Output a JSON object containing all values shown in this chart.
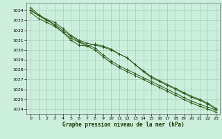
{
  "title": "Graphe pression niveau de la mer (hPa)",
  "bg_color": "#cceedd",
  "grid_color": "#aaccbb",
  "line_color": "#2d5a1b",
  "xlim": [
    -0.5,
    23.5
  ],
  "ylim": [
    1023.5,
    1034.8
  ],
  "yticks": [
    1024,
    1025,
    1026,
    1027,
    1028,
    1029,
    1030,
    1031,
    1032,
    1033,
    1034
  ],
  "xticks": [
    0,
    1,
    2,
    3,
    4,
    5,
    6,
    7,
    8,
    9,
    10,
    11,
    12,
    13,
    14,
    15,
    16,
    17,
    18,
    19,
    20,
    21,
    22,
    23
  ],
  "series": [
    [
      1034.3,
      1033.6,
      1033.1,
      1032.8,
      1032.2,
      1031.5,
      1031.0,
      1030.7,
      1030.5,
      1030.3,
      1030.0,
      1029.6,
      1029.2,
      1028.5,
      1027.9,
      1027.3,
      1026.9,
      1026.5,
      1026.1,
      1025.7,
      1025.3,
      1025.0,
      1024.6,
      1024.1
    ],
    [
      1034.1,
      1033.5,
      1033.0,
      1032.6,
      1032.0,
      1031.4,
      1030.9,
      1030.5,
      1030.2,
      1029.5,
      1028.9,
      1028.4,
      1028.0,
      1027.6,
      1027.2,
      1026.8,
      1026.4,
      1026.0,
      1025.6,
      1025.2,
      1024.8,
      1024.5,
      1024.2,
      1023.9
    ],
    [
      1033.8,
      1033.2,
      1032.8,
      1032.4,
      1031.8,
      1031.2,
      1030.8,
      1030.4,
      1030.0,
      1029.3,
      1028.7,
      1028.2,
      1027.8,
      1027.4,
      1027.0,
      1026.6,
      1026.2,
      1025.8,
      1025.4,
      1025.0,
      1024.6,
      1024.3,
      1024.0,
      1023.7
    ],
    [
      1034.0,
      1033.5,
      1033.1,
      1032.5,
      1031.8,
      1031.0,
      1030.5,
      1030.4,
      1030.6,
      1030.4,
      1030.1,
      1029.6,
      1029.2,
      1028.5,
      1027.8,
      1027.2,
      1026.8,
      1026.4,
      1026.0,
      1025.6,
      1025.2,
      1024.9,
      1024.5,
      1024.0
    ]
  ]
}
